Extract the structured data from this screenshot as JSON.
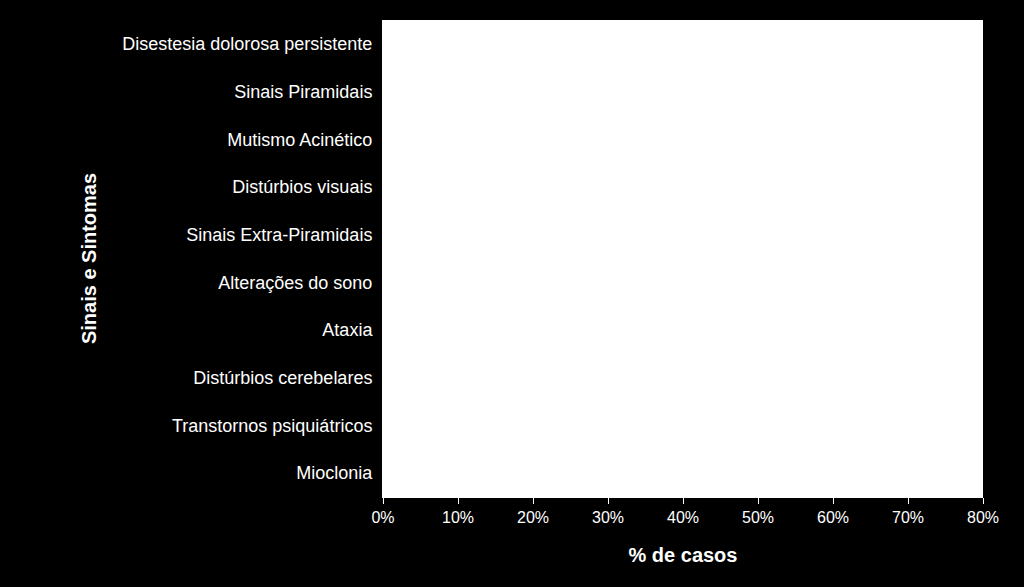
{
  "chart_data": {
    "type": "bar",
    "orientation": "horizontal",
    "x_label": "% de casos",
    "y_label": "Sinais e Sintomas",
    "categories": [
      "Disestesia dolorosa persistente",
      "Sinais Piramidais",
      "Mutismo Acinético",
      "Distúrbios visuais",
      "Sinais Extra-Piramidais",
      "Alterações do sono",
      "Ataxia",
      "Distúrbios cerebelares",
      "Transtornos psiquiátricos",
      "Mioclonia"
    ],
    "values": [
      null,
      null,
      null,
      null,
      null,
      null,
      null,
      null,
      null,
      null
    ],
    "xlim": [
      0,
      80
    ],
    "xticks": [
      {
        "value": 0,
        "label": "0%"
      },
      {
        "value": 10,
        "label": "10%"
      },
      {
        "value": 20,
        "label": "20%"
      },
      {
        "value": 30,
        "label": "30%"
      },
      {
        "value": 40,
        "label": "40%"
      },
      {
        "value": 50,
        "label": "50%"
      },
      {
        "value": 60,
        "label": "60%"
      },
      {
        "value": 70,
        "label": "70%"
      },
      {
        "value": 80,
        "label": "80%"
      }
    ],
    "grid": false
  }
}
